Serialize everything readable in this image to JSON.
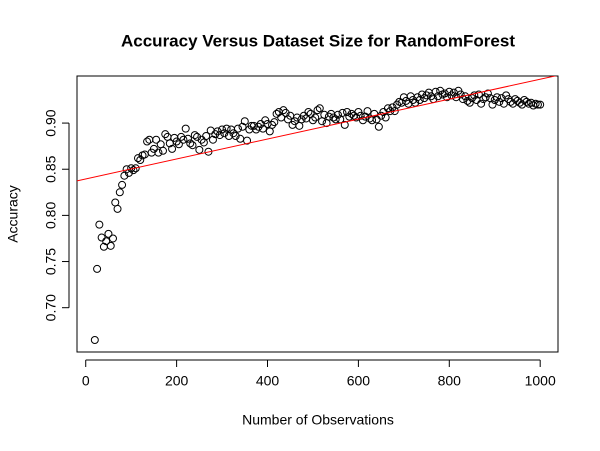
{
  "chart_data": {
    "type": "scatter",
    "title": "Accuracy Versus Dataset Size for RandomForest",
    "xlabel": "Number of Observations",
    "ylabel": "Accuracy",
    "xlim": [
      -19.2,
      1039.2
    ],
    "ylim": [
      0.652,
      0.951
    ],
    "xticks": [
      0,
      200,
      400,
      600,
      800,
      1000
    ],
    "yticks": [
      {
        "value": 0.7,
        "label": "0.70"
      },
      {
        "value": 0.75,
        "label": "0.75"
      },
      {
        "value": 0.8,
        "label": "0.80"
      },
      {
        "value": 0.85,
        "label": "0.85"
      },
      {
        "value": 0.9,
        "label": "0.90"
      }
    ],
    "grid": false,
    "color": "#000000",
    "x": [
      20,
      25,
      30,
      35,
      40,
      45,
      50,
      55,
      60,
      65,
      70,
      75,
      80,
      85,
      90,
      95,
      100,
      105,
      110,
      115,
      120,
      125,
      130,
      135,
      140,
      145,
      150,
      155,
      160,
      165,
      170,
      175,
      180,
      185,
      190,
      195,
      200,
      205,
      210,
      215,
      220,
      225,
      230,
      235,
      240,
      245,
      250,
      255,
      260,
      265,
      270,
      275,
      280,
      285,
      290,
      295,
      300,
      305,
      310,
      315,
      320,
      325,
      330,
      335,
      340,
      345,
      350,
      355,
      360,
      365,
      370,
      375,
      380,
      385,
      390,
      395,
      400,
      405,
      410,
      415,
      420,
      425,
      430,
      435,
      440,
      445,
      450,
      455,
      460,
      465,
      470,
      475,
      480,
      485,
      490,
      495,
      500,
      505,
      510,
      515,
      520,
      525,
      530,
      535,
      540,
      545,
      550,
      555,
      560,
      565,
      570,
      575,
      580,
      585,
      590,
      595,
      600,
      605,
      610,
      615,
      620,
      625,
      630,
      635,
      640,
      645,
      650,
      655,
      660,
      665,
      670,
      675,
      680,
      685,
      690,
      695,
      700,
      705,
      710,
      715,
      720,
      725,
      730,
      735,
      740,
      745,
      750,
      755,
      760,
      765,
      770,
      775,
      780,
      785,
      790,
      795,
      800,
      805,
      810,
      815,
      820,
      825,
      830,
      835,
      840,
      845,
      850,
      855,
      860,
      865,
      870,
      875,
      880,
      885,
      890,
      895,
      900,
      905,
      910,
      915,
      920,
      925,
      930,
      935,
      940,
      945,
      950,
      955,
      960,
      965,
      970,
      975,
      980,
      985,
      990,
      995,
      1000
    ],
    "values": [
      0.665,
      0.742,
      0.79,
      0.776,
      0.766,
      0.772,
      0.78,
      0.767,
      0.775,
      0.814,
      0.807,
      0.825,
      0.833,
      0.843,
      0.85,
      0.846,
      0.851,
      0.849,
      0.851,
      0.862,
      0.86,
      0.865,
      0.866,
      0.88,
      0.882,
      0.868,
      0.872,
      0.882,
      0.868,
      0.877,
      0.87,
      0.888,
      0.885,
      0.878,
      0.872,
      0.884,
      0.88,
      0.877,
      0.885,
      0.882,
      0.894,
      0.883,
      0.878,
      0.876,
      0.887,
      0.885,
      0.871,
      0.882,
      0.879,
      0.886,
      0.869,
      0.892,
      0.882,
      0.888,
      0.891,
      0.887,
      0.893,
      0.889,
      0.894,
      0.886,
      0.893,
      0.889,
      0.886,
      0.894,
      0.883,
      0.896,
      0.902,
      0.881,
      0.893,
      0.897,
      0.897,
      0.893,
      0.896,
      0.899,
      0.894,
      0.903,
      0.899,
      0.891,
      0.898,
      0.901,
      0.91,
      0.912,
      0.906,
      0.914,
      0.911,
      0.904,
      0.908,
      0.898,
      0.902,
      0.906,
      0.897,
      0.904,
      0.908,
      0.905,
      0.912,
      0.91,
      0.903,
      0.906,
      0.914,
      0.916,
      0.902,
      0.909,
      0.9,
      0.907,
      0.91,
      0.906,
      0.904,
      0.909,
      0.904,
      0.911,
      0.898,
      0.912,
      0.907,
      0.91,
      0.908,
      0.906,
      0.912,
      0.908,
      0.903,
      0.907,
      0.913,
      0.905,
      0.903,
      0.91,
      0.904,
      0.896,
      0.908,
      0.912,
      0.906,
      0.916,
      0.913,
      0.917,
      0.913,
      0.92,
      0.923,
      0.922,
      0.928,
      0.924,
      0.921,
      0.929,
      0.925,
      0.922,
      0.928,
      0.925,
      0.931,
      0.927,
      0.93,
      0.933,
      0.929,
      0.926,
      0.934,
      0.929,
      0.935,
      0.931,
      0.932,
      0.928,
      0.934,
      0.93,
      0.933,
      0.928,
      0.935,
      0.931,
      0.926,
      0.929,
      0.924,
      0.922,
      0.927,
      0.93,
      0.925,
      0.931,
      0.921,
      0.926,
      0.928,
      0.932,
      0.927,
      0.92,
      0.925,
      0.928,
      0.923,
      0.927,
      0.921,
      0.93,
      0.926,
      0.923,
      0.921,
      0.926,
      0.924,
      0.922,
      0.92,
      0.925,
      0.923,
      0.921,
      0.922,
      0.919,
      0.921,
      0.92,
      0.92
    ],
    "abline": {
      "intercept": 0.8395,
      "slope": 0.000108,
      "color": "#ff0000"
    }
  }
}
